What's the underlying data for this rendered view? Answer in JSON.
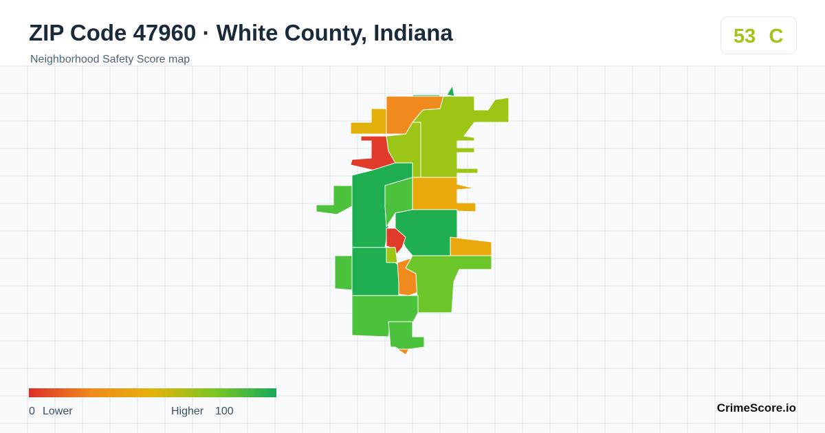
{
  "header": {
    "title": "ZIP Code 47960 · White County, Indiana",
    "subtitle": "Neighborhood Safety Score map"
  },
  "score": {
    "value": 53,
    "grade": "C"
  },
  "legend": {
    "min": 0,
    "min_label": "Lower",
    "max_label": "Higher",
    "max": 100
  },
  "brand": "CrimeScore.io"
}
